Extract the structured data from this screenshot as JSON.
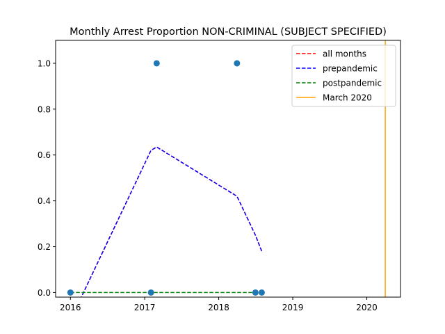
{
  "chart_data": {
    "type": "line",
    "title": "Monthly Arrest Proportion NON-CRIMINAL (SUBJECT SPECIFIED)",
    "xlabel": "",
    "ylabel": "",
    "xlim": [
      "2015-10-20",
      "2020-06-15"
    ],
    "ylim": [
      -0.02,
      1.1
    ],
    "x_ticks": [
      "2016",
      "2017",
      "2018",
      "2019",
      "2020"
    ],
    "x_tick_dates": [
      "2016-01-01",
      "2017-01-01",
      "2018-01-01",
      "2019-01-01",
      "2020-01-01"
    ],
    "y_ticks": [
      0.0,
      0.2,
      0.4,
      0.6,
      0.8,
      1.0
    ],
    "y_tick_labels": [
      "0.0",
      "0.2",
      "0.4",
      "0.6",
      "0.8",
      "1.0"
    ],
    "legend_position": "top-right",
    "points": {
      "color": "#1f77b4",
      "x": [
        "2016-01-01",
        "2017-02-01",
        "2017-03-01",
        "2018-04-01",
        "2018-07-01",
        "2018-08-01"
      ],
      "y": [
        0,
        0,
        1,
        1,
        0,
        0
      ]
    },
    "series": [
      {
        "name": "all months",
        "style": "dashed",
        "color": "#ff0000",
        "x": [
          "2016-01-01",
          "2017-02-01",
          "2017-03-01",
          "2018-04-01",
          "2018-07-01",
          "2018-08-01"
        ],
        "y": [
          -0.12,
          0.62,
          0.635,
          0.42,
          0.25,
          0.18
        ]
      },
      {
        "name": "prepandemic",
        "style": "dashed",
        "color": "#0000ff",
        "x": [
          "2016-01-01",
          "2017-02-01",
          "2017-03-01",
          "2018-04-01",
          "2018-07-01",
          "2018-08-01"
        ],
        "y": [
          -0.12,
          0.62,
          0.635,
          0.42,
          0.25,
          0.18
        ]
      },
      {
        "name": "postpandemic",
        "style": "dashed",
        "color": "#008000",
        "x": [
          "2016-01-01",
          "2018-08-01"
        ],
        "y": [
          0,
          0
        ]
      },
      {
        "name": "March 2020",
        "style": "solid",
        "color": "#ffa500",
        "vline_x": "2020-04-01"
      }
    ]
  }
}
